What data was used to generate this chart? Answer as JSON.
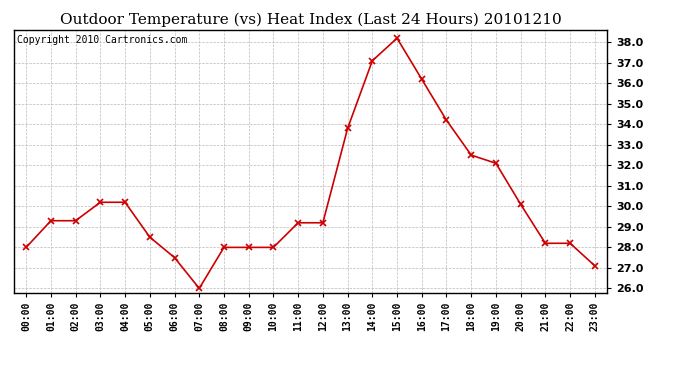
{
  "title": "Outdoor Temperature (vs) Heat Index (Last 24 Hours) 20101210",
  "copyright": "Copyright 2010 Cartronics.com",
  "x_labels": [
    "00:00",
    "01:00",
    "02:00",
    "03:00",
    "04:00",
    "05:00",
    "06:00",
    "07:00",
    "08:00",
    "09:00",
    "10:00",
    "11:00",
    "12:00",
    "13:00",
    "14:00",
    "15:00",
    "16:00",
    "17:00",
    "18:00",
    "19:00",
    "20:00",
    "21:00",
    "22:00",
    "23:00"
  ],
  "y_values": [
    28.0,
    29.3,
    29.3,
    30.2,
    30.2,
    28.5,
    27.5,
    26.0,
    28.0,
    28.0,
    28.0,
    29.2,
    29.2,
    33.8,
    37.1,
    38.2,
    36.2,
    34.2,
    32.5,
    32.1,
    30.1,
    28.2,
    28.2,
    27.1
  ],
  "line_color": "#cc0000",
  "marker": "x",
  "marker_color": "#cc0000",
  "bg_color": "#ffffff",
  "grid_color": "#bbbbbb",
  "ylim": [
    25.8,
    38.6
  ],
  "yticks": [
    26.0,
    27.0,
    28.0,
    29.0,
    30.0,
    31.0,
    32.0,
    33.0,
    34.0,
    35.0,
    36.0,
    37.0,
    38.0
  ],
  "title_fontsize": 11,
  "copyright_fontsize": 7,
  "tick_fontsize": 7,
  "ytick_fontsize": 8
}
